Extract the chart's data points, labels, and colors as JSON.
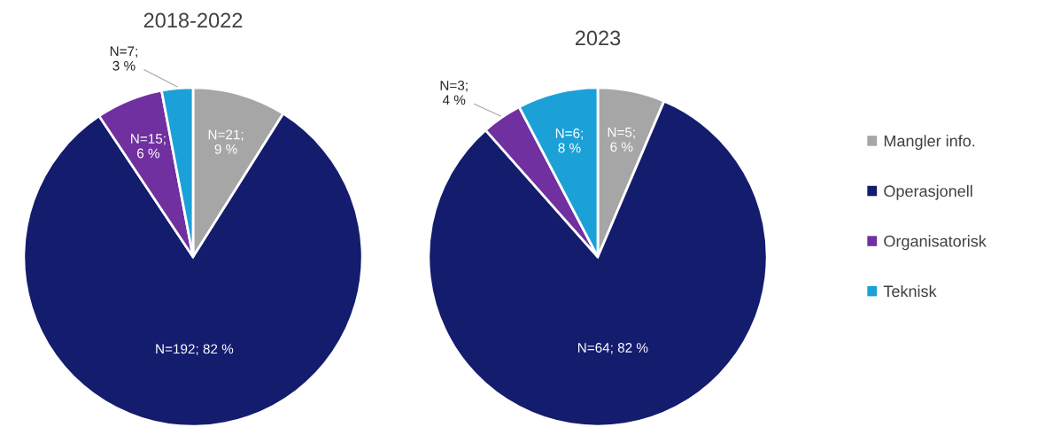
{
  "chart_data": [
    {
      "type": "pie",
      "title": "2018-2022",
      "categories": [
        "Mangler info.",
        "Operasjonell",
        "Organisatorisk",
        "Teknisk"
      ],
      "values": [
        21,
        192,
        15,
        7
      ],
      "value_labels": [
        "N=21;\n9 %",
        "N=192; 82 %",
        "N=15;\n6 %",
        "N=7;\n3 %"
      ],
      "colors": [
        "#a6a6a6",
        "#141c6e",
        "#7030a0",
        "#1ba1d8"
      ],
      "legend": "right"
    },
    {
      "type": "pie",
      "title": "2023",
      "categories": [
        null,
        null,
        null,
        null
      ],
      "values": [
        5,
        64,
        3,
        6
      ],
      "value_labels": [
        "N=5;\n6 %",
        "N=64; 82 %",
        "N=3;\n4 %",
        "N=6;\n8 %"
      ],
      "colors": [
        "#a6a6a6",
        "#141c6e",
        "#7030a0",
        "#1ba1d8"
      ]
    }
  ]
}
